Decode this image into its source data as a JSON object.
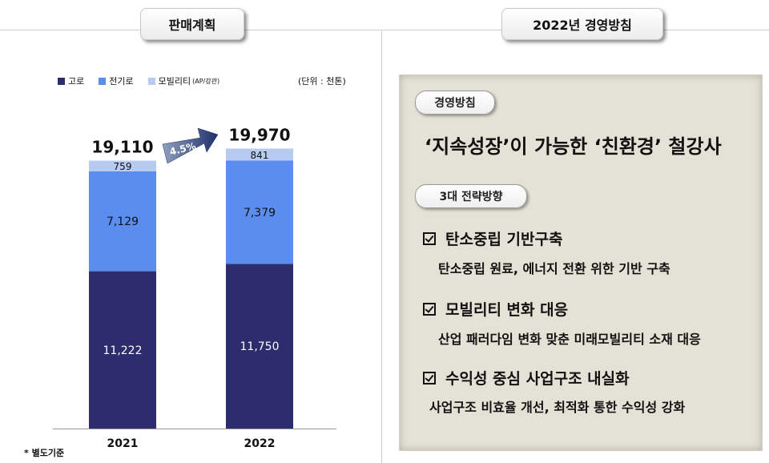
{
  "header": {
    "plan_label": "판매계획",
    "policy_label": "2022년 경영방침"
  },
  "legend": {
    "items": [
      {
        "label": "고로",
        "sub": "",
        "color": "#2c2c6e"
      },
      {
        "label": "전기로",
        "sub": "",
        "color": "#5b8def"
      },
      {
        "label": "모빌리티",
        "sub": "(AP/강관)",
        "color": "#b7caf0"
      }
    ],
    "unit": "(단위 : 천톤)"
  },
  "chart_data": {
    "type": "bar",
    "stacked": true,
    "categories": [
      "2021",
      "2022"
    ],
    "series": [
      {
        "name": "고로",
        "values": [
          11222,
          11750
        ],
        "labels": [
          "11,222",
          "11,750"
        ],
        "color": "#2c2c6e"
      },
      {
        "name": "전기로",
        "values": [
          7129,
          7379
        ],
        "labels": [
          "7,129",
          "7,379"
        ],
        "color": "#5b8def"
      },
      {
        "name": "모빌리티",
        "values": [
          759,
          841
        ],
        "labels": [
          "759",
          "841"
        ],
        "color": "#b7caf0"
      }
    ],
    "totals": [
      "19,110",
      "19,970"
    ],
    "growth_label": "4.5%"
  },
  "footnote": "* 별도기준",
  "policy": {
    "label": "경영방침",
    "slogan": "‘지속성장’이 가능한 ‘친환경’ 철강사",
    "strategy_label": "3대 전략방향",
    "strategies": [
      {
        "title": "탄소중립 기반구축",
        "desc": "탄소중립 원료, 에너지 전환 위한 기반 구축"
      },
      {
        "title": "모빌리티 변화 대응",
        "desc": "산업 패러다임 변화 맞춘 미래모빌리티 소재 대응"
      },
      {
        "title": "수익성 중심 사업구조 내실화",
        "desc": "사업구조 비효율 개선, 최적화 통한 수익성 강화"
      }
    ]
  }
}
